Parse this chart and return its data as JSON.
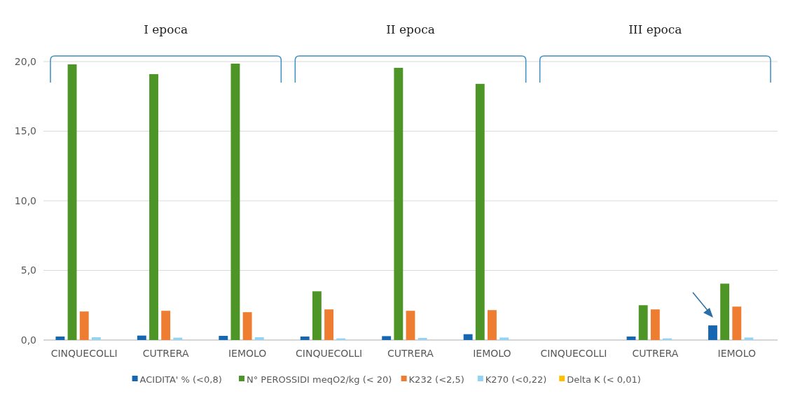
{
  "chart_data": {
    "type": "bar",
    "categories": [
      "CINQUECOLLI",
      "CUTRERA",
      "IEMOLO",
      "CINQUECOLLI",
      "CUTRERA",
      "IEMOLO",
      "CINQUECOLLI",
      "CUTRERA",
      "IEMOLO"
    ],
    "series": [
      {
        "name": "ACIDITA' % (<0,8)",
        "color": "#1467b0",
        "values": [
          0.25,
          0.32,
          0.3,
          0.25,
          0.28,
          0.42,
          null,
          0.25,
          1.05
        ]
      },
      {
        "name": "N° PEROSSIDI meqO2/kg (< 20)",
        "color": "#4d9527",
        "values": [
          19.8,
          19.1,
          19.85,
          3.5,
          19.55,
          18.4,
          null,
          2.5,
          4.05
        ]
      },
      {
        "name": "K232 (<2,5)",
        "color": "#ee7d31",
        "values": [
          2.05,
          2.1,
          2.0,
          2.2,
          2.1,
          2.15,
          null,
          2.2,
          2.4
        ]
      },
      {
        "name": "K270 (<0,22)",
        "color": "#93d3f3",
        "values": [
          0.2,
          0.17,
          0.2,
          0.12,
          0.15,
          0.18,
          null,
          0.12,
          0.18
        ]
      },
      {
        "name": "Delta K (< 0,01)",
        "color": "#ffc000",
        "values": [
          0,
          0,
          0,
          0,
          0,
          0,
          null,
          0,
          0
        ]
      }
    ],
    "ylim": [
      0,
      20
    ],
    "yticks": [
      {
        "value": 0,
        "label": "0,0"
      },
      {
        "value": 5,
        "label": "5,0"
      },
      {
        "value": 10,
        "label": "10,0"
      },
      {
        "value": 15,
        "label": "15,0"
      },
      {
        "value": 20,
        "label": "20,0"
      }
    ],
    "grid": "y",
    "legend": "bottom",
    "annotations": [
      "I epoca",
      "II epoca",
      "III epoca"
    ]
  }
}
